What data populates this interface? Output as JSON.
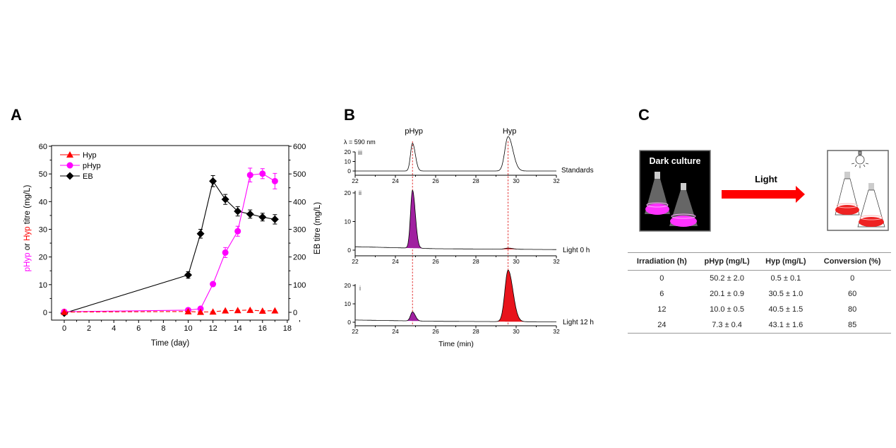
{
  "panel_labels": {
    "a": "A",
    "b": "B",
    "c": "C"
  },
  "chart_data": [
    {
      "panel": "A",
      "type": "line",
      "xlabel": "Time (day)",
      "ylabel_parts": [
        {
          "text": "pHyp",
          "color": "#ff00ff"
        },
        {
          "text": " or ",
          "color": "#000000"
        },
        {
          "text": "Hyp",
          "color": "#ff0000"
        },
        {
          "text": " titre (mg/L)",
          "color": "#000000"
        }
      ],
      "y2label": "EB titre (mg/L)",
      "xlim": [
        -1,
        18
      ],
      "ylim": [
        -2.8,
        60
      ],
      "y2lim": [
        -28,
        600
      ],
      "xticks": [
        "0",
        "2",
        "4",
        "6",
        "8",
        "10",
        "12",
        "14",
        "16",
        "18"
      ],
      "yticks": [
        "0",
        "10",
        "20",
        "30",
        "40",
        "50",
        "60"
      ],
      "y2ticks": [
        "0",
        "100",
        "200",
        "300",
        "400",
        "500",
        "600"
      ],
      "legend": "top-left",
      "grid": false,
      "series": [
        {
          "name": "Hyp",
          "axis": "left",
          "color": "#ff0000",
          "marker": "triangle",
          "x": [
            0,
            10,
            11,
            12,
            13,
            14,
            15,
            16,
            17
          ],
          "y": [
            0.1,
            0.3,
            0.1,
            0.2,
            0.6,
            0.7,
            0.8,
            0.5,
            0.6
          ],
          "err": [
            0,
            0,
            0,
            0,
            0,
            0,
            0,
            0,
            0
          ]
        },
        {
          "name": "pHyp",
          "axis": "left",
          "color": "#ff00ff",
          "marker": "circle",
          "x": [
            0,
            10,
            11,
            12,
            13,
            14,
            15,
            16,
            17
          ],
          "y": [
            0.2,
            0.8,
            1.3,
            10.2,
            21.6,
            29.3,
            49.6,
            50.1,
            47.4
          ],
          "err": [
            0,
            0.3,
            0.3,
            0.5,
            1.8,
            1.8,
            2.5,
            1.8,
            2.8
          ]
        },
        {
          "name": "EB",
          "axis": "right",
          "color": "#000000",
          "marker": "diamond",
          "x": [
            0,
            10,
            11,
            12,
            13,
            14,
            15,
            16,
            17
          ],
          "y": [
            -3,
            135,
            284,
            474,
            408,
            365,
            355,
            344,
            336
          ],
          "err": [
            0,
            12,
            16,
            20,
            18,
            17,
            15,
            14,
            17
          ]
        }
      ]
    },
    {
      "panel": "B",
      "type": "line",
      "xlabel": "Time (min)",
      "annotation": "λ = 590 nm",
      "xlim": [
        22,
        32
      ],
      "xticks": [
        "22",
        "24",
        "26",
        "28",
        "30",
        "32"
      ],
      "peak_labels": [
        {
          "text": "pHyp",
          "rt": 24.85
        },
        {
          "text": "Hyp",
          "rt": 29.6
        }
      ],
      "reference_lines_rt": [
        24.85,
        29.6
      ],
      "traces": [
        {
          "id": "iii",
          "name": "Standards",
          "yticks": [
            "0",
            "10",
            "20"
          ],
          "ylim": [
            -4,
            25
          ],
          "filled": false,
          "baseline": [
            [
              22,
              0
            ],
            [
              32,
              0
            ]
          ],
          "peaks": [
            {
              "rt": 24.85,
              "height": 29,
              "color": "#000000"
            },
            {
              "rt": 29.6,
              "height": 36,
              "color": "#000000"
            }
          ]
        },
        {
          "id": "ii",
          "name": "Light 0 h",
          "yticks": [
            "0",
            "10",
            "20"
          ],
          "ylim": [
            -2,
            21
          ],
          "filled": true,
          "baseline": [
            [
              22,
              1.2
            ],
            [
              26,
              0.5
            ],
            [
              32,
              0.2
            ]
          ],
          "peaks": [
            {
              "rt": 24.85,
              "height": 20.2,
              "color": "#a020a0"
            },
            {
              "rt": 29.6,
              "height": 0.4,
              "color": "#e8141c"
            }
          ]
        },
        {
          "id": "i",
          "name": "Light 12 h",
          "yticks": [
            "0",
            "10",
            "20"
          ],
          "ylim": [
            -2,
            22
          ],
          "filled": true,
          "baseline": [
            [
              22,
              1.2
            ],
            [
              26,
              0.5
            ],
            [
              32,
              0.2
            ]
          ],
          "peaks": [
            {
              "rt": 24.85,
              "height": 4.9,
              "color": "#a020a0"
            },
            {
              "rt": 29.6,
              "height": 28,
              "color": "#e8141c"
            }
          ]
        }
      ]
    }
  ],
  "panel_c": {
    "dark_label": "Dark culture",
    "arrow_label": "Light",
    "colors": {
      "dark_medium": "#ff33ff",
      "light_medium": "#ee2222",
      "arrow": "#ff0000"
    },
    "table": {
      "headers": [
        "Irradiation (h)",
        "pHyp (mg/L)",
        "Hyp (mg/L)",
        "Conversion (%)"
      ],
      "rows": [
        [
          "0",
          "50.2 ± 2.0",
          "0.5 ± 0.1",
          "0"
        ],
        [
          "6",
          "20.1 ± 0.9",
          "30.5 ± 1.0",
          "60"
        ],
        [
          "12",
          "10.0 ± 0.5",
          "40.5 ± 1.5",
          "80"
        ],
        [
          "24",
          "7.3 ± 0.4",
          "43.1 ± 1.6",
          "85"
        ]
      ]
    }
  }
}
